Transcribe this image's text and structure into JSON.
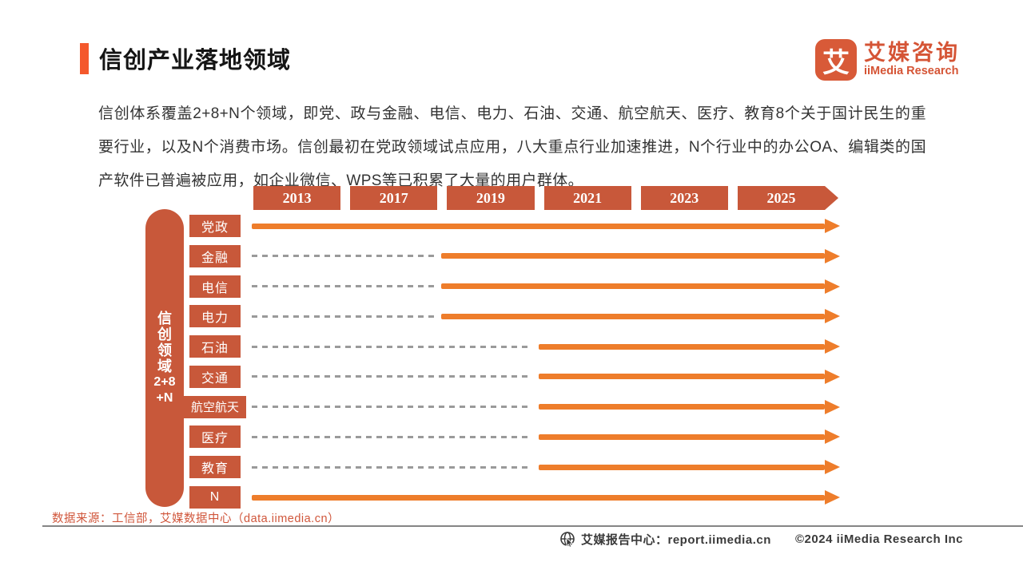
{
  "header": {
    "title": "信创产业落地领域",
    "logo": {
      "icon_char": "艾",
      "brand_cn": "艾媒咨询",
      "brand_en": "iiMedia Research"
    }
  },
  "intro": {
    "text": "信创体系覆盖2+8+N个领域，即党、政与金融、电信、电力、石油、交通、航空航天、医疗、教育8个关于国计民生的重要行业，以及N个消费市场。信创最初在党政领域试点应用，八大重点行业加速推进，N个行业中的办公OA、编辑类的国产软件已普遍被应用，如企业微信、WPS等已积累了大量的用户群体。"
  },
  "chart_data": {
    "type": "timeline",
    "title": "信创产业落地领域",
    "years": [
      "2013",
      "2017",
      "2019",
      "2021",
      "2023",
      "2025"
    ],
    "axis_lines": [
      "信",
      "创",
      "领",
      "域",
      "2+8",
      "+N"
    ],
    "axis_label": "信创领域2+8+N",
    "rows": [
      {
        "label": "党政",
        "adoption_start": "2013"
      },
      {
        "label": "金融",
        "adoption_start": "2019"
      },
      {
        "label": "电信",
        "adoption_start": "2019"
      },
      {
        "label": "电力",
        "adoption_start": "2019"
      },
      {
        "label": "石油",
        "adoption_start": "2021"
      },
      {
        "label": "交通",
        "adoption_start": "2021"
      },
      {
        "label": "航空航天",
        "adoption_start": "2021"
      },
      {
        "label": "医疗",
        "adoption_start": "2021"
      },
      {
        "label": "教育",
        "adoption_start": "2021"
      },
      {
        "label": "N",
        "adoption_start": "2013"
      }
    ],
    "timeline_end": "2025+",
    "legend_position": "none",
    "grid": false
  },
  "source": "数据来源：工信部，艾媒数据中心（data.iimedia.cn）",
  "footer": {
    "report_center": "艾媒报告中心：report.iimedia.cn",
    "copyright": "©2024  iiMedia Research Inc"
  },
  "colors": {
    "terracotta": "#C8583A",
    "orange": "#EE7D2B",
    "accent": "#F4582C",
    "dash": "#9A9A9A",
    "source_text": "#D0563B"
  }
}
